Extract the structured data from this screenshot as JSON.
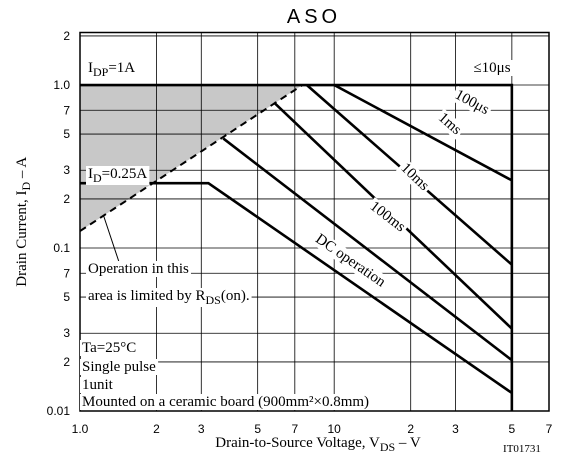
{
  "chart_data": {
    "type": "line",
    "title": "ASO",
    "x_label": {
      "parts": [
        "Drain-to-Source Voltage, V",
        "DS",
        "  –  V"
      ]
    },
    "y_label": {
      "parts": [
        "Drain Current, I",
        "D",
        "  –  A"
      ]
    },
    "code": "IT01731",
    "log_x": true,
    "log_y": true,
    "grid": true,
    "xlim": [
      1,
      70
    ],
    "ylim": [
      0.01,
      2.1
    ],
    "xticks": [
      {
        "value": 1,
        "label": "1.0"
      },
      2,
      3,
      5,
      7,
      10,
      {
        "value": 20,
        "label": "2"
      },
      {
        "value": 30,
        "label": "3"
      },
      {
        "value": 50,
        "label": "5"
      },
      {
        "value": 70,
        "label": "7"
      }
    ],
    "yticks": [
      0.01,
      {
        "value": 0.02,
        "label": "2"
      },
      {
        "value": 0.03,
        "label": "3"
      },
      {
        "value": 0.05,
        "label": "5"
      },
      {
        "value": 0.07,
        "label": "7"
      },
      0.1,
      {
        "value": 0.2,
        "label": "2"
      },
      {
        "value": 0.3,
        "label": "3"
      },
      {
        "value": 0.5,
        "label": "5"
      },
      {
        "value": 0.7,
        "label": "7"
      },
      {
        "value": 1,
        "label": "1.0"
      },
      2
    ],
    "series": [
      {
        "name": "≤10μs",
        "color": "#000000",
        "x": [
          1,
          50,
          50
        ],
        "values": [
          1,
          1,
          0.01
        ]
      },
      {
        "name": "100μs",
        "color": "#000000",
        "x": [
          10,
          50
        ],
        "values": [
          1,
          0.26
        ]
      },
      {
        "name": "1ms",
        "color": "#000000",
        "x": [
          7.8,
          50
        ],
        "values": [
          1,
          0.079
        ]
      },
      {
        "name": "10ms",
        "color": "#000000",
        "x": [
          5.8,
          50
        ],
        "values": [
          0.78,
          0.032
        ]
      },
      {
        "name": "100ms",
        "color": "#000000",
        "x": [
          3.66,
          50
        ],
        "values": [
          0.47,
          0.0205
        ]
      },
      {
        "name": "DC operation",
        "color": "#000000",
        "x": [
          1,
          3.2,
          50
        ],
        "values": [
          0.25,
          0.25,
          0.0129
        ]
      },
      {
        "color": "#000000",
        "style": "dashed",
        "x": [
          1,
          7.5
        ],
        "values": [
          0.127,
          1
        ]
      }
    ],
    "shade_color": "#c8c8c8",
    "annotations": [
      {
        "parts": [
          "I",
          "DP",
          "=1A"
        ]
      },
      {
        "parts": [
          "I",
          "D",
          "=0.25A"
        ]
      },
      {
        "parts": [
          "Operation in this"
        ]
      },
      {
        "parts": [
          "area is limited by R",
          "DS",
          "(on)."
        ]
      },
      {
        "parts": [
          "Ta=25°C"
        ]
      },
      {
        "parts": [
          "Single pulse"
        ]
      },
      {
        "parts": [
          "1unit"
        ]
      },
      {
        "parts": [
          "Mounted on a ceramic board (900mm²×0.8mm)"
        ]
      }
    ]
  }
}
